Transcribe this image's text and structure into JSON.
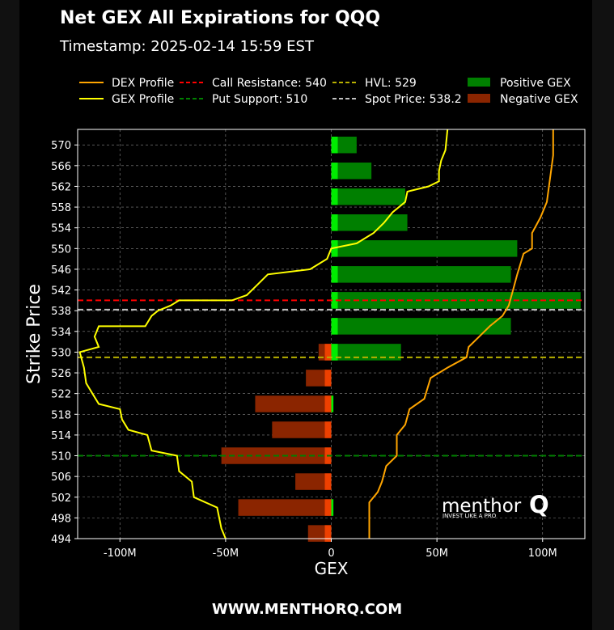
{
  "header": {
    "title": "Net GEX All Expirations for QQQ",
    "timestamp": "Timestamp: 2025-02-14 15:59 EST"
  },
  "footer": {
    "url": "WWW.MENTHORQ.COM"
  },
  "watermark": {
    "brand": "menthor",
    "brand_q": "Q",
    "tagline": "INVEST LIKE A PRO"
  },
  "colors": {
    "background": "#000000",
    "positive": "#007f00",
    "positive_bright": "#00ff00",
    "negative": "#8b2500",
    "negative_bright": "#ff4500",
    "dex": "#ffa500",
    "gex": "#ffff00",
    "call_resistance": "#ff0000",
    "put_support": "#008000",
    "hvl": "#b8b000",
    "spot": "#c0c0c0",
    "grid": "#888888"
  },
  "chart_data": {
    "type": "bar",
    "orientation": "horizontal",
    "xlabel": "GEX",
    "ylabel": "Strike Price",
    "xlim": [
      -120000000,
      120000000
    ],
    "ylim": [
      494,
      573
    ],
    "xticks": [
      -100000000,
      -50000000,
      0,
      50000000,
      100000000
    ],
    "xtick_labels": [
      "-100M",
      "-50M",
      "0",
      "50M",
      "100M"
    ],
    "yticks": [
      494,
      498,
      502,
      506,
      510,
      514,
      518,
      522,
      526,
      530,
      534,
      538,
      542,
      546,
      550,
      554,
      558,
      562,
      566,
      570
    ],
    "grid": true,
    "legend": {
      "placement": "top",
      "entries": [
        {
          "label": "DEX Profile",
          "kind": "line",
          "color": "#ffa500",
          "style": "solid"
        },
        {
          "label": "GEX Profile",
          "kind": "line",
          "color": "#ffff00",
          "style": "solid"
        },
        {
          "label": "Call Resistance: 540",
          "kind": "line",
          "color": "#ff0000",
          "style": "dashed"
        },
        {
          "label": "Put Support: 510",
          "kind": "line",
          "color": "#008000",
          "style": "dashed"
        },
        {
          "label": "HVL: 529",
          "kind": "line",
          "color": "#b8b000",
          "style": "dashed"
        },
        {
          "label": "Spot Price: 538.2",
          "kind": "line",
          "color": "#c0c0c0",
          "style": "dashed"
        },
        {
          "label": "Positive GEX",
          "kind": "patch",
          "color": "#007f00"
        },
        {
          "label": "Negative GEX",
          "kind": "patch",
          "color": "#8b2500"
        }
      ]
    },
    "levels": {
      "call_resistance": 540,
      "put_support": 510,
      "hvl": 529,
      "spot": 538.2
    },
    "series": [
      {
        "name": "Positive GEX",
        "bars": [
          {
            "strike": 570,
            "value": 12000000
          },
          {
            "strike": 565,
            "value": 19000000
          },
          {
            "strike": 560,
            "value": 35000000
          },
          {
            "strike": 555,
            "value": 36000000
          },
          {
            "strike": 550,
            "value": 88000000
          },
          {
            "strike": 545,
            "value": 85000000
          },
          {
            "strike": 540,
            "value": 118000000
          },
          {
            "strike": 535,
            "value": 85000000
          },
          {
            "strike": 530,
            "value": 33000000
          },
          {
            "strike": 520,
            "value": 1000000
          },
          {
            "strike": 500,
            "value": 1000000
          }
        ]
      },
      {
        "name": "Negative GEX",
        "bars": [
          {
            "strike": 530,
            "value": -6000000
          },
          {
            "strike": 525,
            "value": -12000000
          },
          {
            "strike": 520,
            "value": -36000000
          },
          {
            "strike": 515,
            "value": -28000000
          },
          {
            "strike": 510,
            "value": -52000000
          },
          {
            "strike": 505,
            "value": -17000000
          },
          {
            "strike": 500,
            "value": -44000000
          },
          {
            "strike": 495,
            "value": -11000000
          }
        ]
      },
      {
        "name": "DEX Profile",
        "points": [
          [
            105000000,
            573
          ],
          [
            105000000,
            568
          ],
          [
            104000000,
            565
          ],
          [
            103000000,
            562
          ],
          [
            102000000,
            559
          ],
          [
            99000000,
            556
          ],
          [
            95000000,
            553
          ],
          [
            95000000,
            550
          ],
          [
            91000000,
            549
          ],
          [
            88000000,
            545
          ],
          [
            86000000,
            542
          ],
          [
            84000000,
            539
          ],
          [
            81000000,
            537
          ],
          [
            75000000,
            535
          ],
          [
            70000000,
            533
          ],
          [
            65000000,
            531
          ],
          [
            64000000,
            529
          ],
          [
            55000000,
            527
          ],
          [
            47000000,
            525
          ],
          [
            44000000,
            521
          ],
          [
            37000000,
            519
          ],
          [
            35000000,
            516
          ],
          [
            31000000,
            514
          ],
          [
            31000000,
            510
          ],
          [
            26000000,
            508
          ],
          [
            24000000,
            505
          ],
          [
            22000000,
            503
          ],
          [
            18000000,
            501
          ],
          [
            18000000,
            498
          ],
          [
            18000000,
            494
          ]
        ]
      },
      {
        "name": "GEX Profile",
        "points": [
          [
            55000000,
            573
          ],
          [
            54000000,
            569
          ],
          [
            52000000,
            567
          ],
          [
            51000000,
            565
          ],
          [
            51000000,
            563
          ],
          [
            46000000,
            562
          ],
          [
            36000000,
            561
          ],
          [
            35000000,
            559
          ],
          [
            29000000,
            557
          ],
          [
            25000000,
            555
          ],
          [
            20000000,
            553
          ],
          [
            12000000,
            551
          ],
          [
            0,
            550
          ],
          [
            -2000000,
            548
          ],
          [
            -10000000,
            546
          ],
          [
            -30000000,
            545
          ],
          [
            -35000000,
            543
          ],
          [
            -40000000,
            541
          ],
          [
            -47000000,
            540
          ],
          [
            -72000000,
            540
          ],
          [
            -76000000,
            539
          ],
          [
            -82000000,
            538
          ],
          [
            -85000000,
            537
          ],
          [
            -88000000,
            535
          ],
          [
            -110000000,
            535
          ],
          [
            -112000000,
            533
          ],
          [
            -110000000,
            531
          ],
          [
            -119000000,
            530
          ],
          [
            -117000000,
            527
          ],
          [
            -116000000,
            524
          ],
          [
            -113000000,
            522
          ],
          [
            -110000000,
            520
          ],
          [
            -100000000,
            519
          ],
          [
            -99000000,
            517
          ],
          [
            -96000000,
            515
          ],
          [
            -87000000,
            514
          ],
          [
            -85000000,
            511
          ],
          [
            -73000000,
            510
          ],
          [
            -72000000,
            507
          ],
          [
            -66000000,
            505
          ],
          [
            -65000000,
            502
          ],
          [
            -54000000,
            500
          ],
          [
            -52000000,
            496
          ],
          [
            -50000000,
            494
          ]
        ]
      }
    ]
  }
}
